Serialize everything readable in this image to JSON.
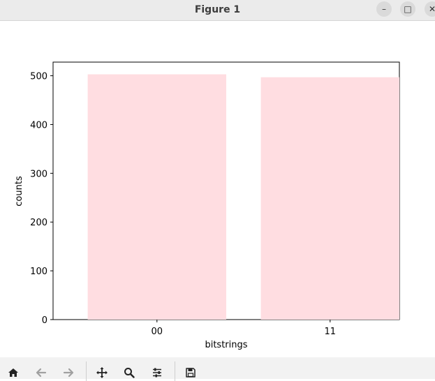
{
  "window": {
    "title": "Figure 1",
    "controls": {
      "minimize": "–",
      "maximize": "□",
      "close": "✕"
    }
  },
  "toolbar": {
    "tools": [
      "home-icon",
      "back-arrow-icon",
      "forward-arrow-icon",
      "pan-icon",
      "zoom-icon",
      "configure-subplots-icon",
      "save-icon"
    ]
  },
  "chart_data": {
    "type": "bar",
    "categories": [
      "00",
      "11"
    ],
    "values": [
      503,
      497
    ],
    "title": "",
    "xlabel": "bitstrings",
    "ylabel": "counts",
    "ylim": [
      0,
      528
    ],
    "yticks": [
      0,
      100,
      200,
      300,
      400,
      500
    ],
    "bar_color": "#ffdde1",
    "grid": false
  }
}
